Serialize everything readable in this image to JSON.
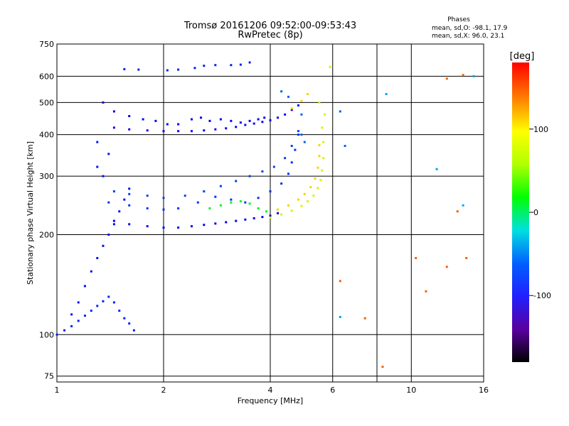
{
  "chart_data": {
    "type": "scatter",
    "title": "Tromsø 20161206 09:52:00-09:53:43",
    "subtitle": "RwPretec (8p)",
    "phase_stats": {
      "heading": "Phases",
      "line_o": "mean, sd,O: -98.1, 17.9",
      "line_x": "mean, sd,X:  96.0, 23.1"
    },
    "xlabel": "Frequency [MHz]",
    "ylabel": "Stationary phase Virtual Height [km]",
    "xscale": "log",
    "yscale": "log",
    "xlim": [
      1,
      16
    ],
    "ylim": [
      72,
      750
    ],
    "xticks": [
      1,
      2,
      4,
      6,
      10,
      16
    ],
    "xtick_labels": [
      "1",
      "2",
      "4",
      "6",
      "10",
      "16"
    ],
    "xgrid": [
      2,
      4,
      6,
      8,
      10
    ],
    "yticks": [
      75,
      100,
      200,
      300,
      400,
      500,
      600,
      750
    ],
    "ytick_labels": [
      "75",
      "100",
      "200",
      "300",
      "400",
      "500",
      "600",
      "750"
    ],
    "grid": true,
    "colorbar": {
      "label": "[deg]",
      "range": [
        -180,
        180
      ],
      "ticks": [
        100,
        0,
        -100
      ],
      "tick_labels": [
        "100",
        "0",
        "-100"
      ]
    },
    "series": [
      {
        "name": "",
        "phase": -110,
        "points": [
          [
            1.55,
            630
          ],
          [
            1.7,
            628
          ],
          [
            2.05,
            625
          ],
          [
            2.2,
            628
          ],
          [
            2.45,
            635
          ],
          [
            2.6,
            645
          ],
          [
            2.8,
            648
          ],
          [
            3.1,
            648
          ],
          [
            3.3,
            650
          ],
          [
            3.5,
            660
          ]
        ]
      },
      {
        "name": "",
        "phase": -120,
        "points": [
          [
            1.35,
            500
          ],
          [
            1.45,
            470
          ],
          [
            1.6,
            455
          ],
          [
            1.75,
            445
          ],
          [
            1.9,
            440
          ],
          [
            2.05,
            430
          ],
          [
            2.2,
            430
          ],
          [
            2.4,
            445
          ],
          [
            2.55,
            450
          ],
          [
            2.7,
            440
          ],
          [
            2.9,
            445
          ],
          [
            3.1,
            440
          ],
          [
            3.3,
            435
          ],
          [
            3.5,
            440
          ],
          [
            3.7,
            445
          ],
          [
            3.85,
            450
          ]
        ]
      },
      {
        "name": "",
        "phase": -125,
        "points": [
          [
            1.45,
            420
          ],
          [
            1.6,
            415
          ],
          [
            1.8,
            412
          ],
          [
            2.0,
            410
          ],
          [
            2.2,
            410
          ],
          [
            2.4,
            410
          ],
          [
            2.6,
            412
          ],
          [
            2.8,
            415
          ],
          [
            3.0,
            418
          ],
          [
            3.2,
            422
          ],
          [
            3.4,
            428
          ],
          [
            3.6,
            432
          ],
          [
            3.8,
            437
          ],
          [
            4.0,
            442
          ],
          [
            4.2,
            450
          ],
          [
            4.4,
            460
          ],
          [
            4.6,
            475
          ],
          [
            4.8,
            490
          ]
        ]
      },
      {
        "name": "",
        "phase": -115,
        "points": [
          [
            1.1,
            115
          ],
          [
            1.15,
            125
          ],
          [
            1.2,
            140
          ],
          [
            1.25,
            155
          ],
          [
            1.3,
            170
          ],
          [
            1.35,
            185
          ],
          [
            1.4,
            200
          ],
          [
            1.45,
            215
          ],
          [
            1.5,
            235
          ],
          [
            1.55,
            255
          ],
          [
            1.6,
            275
          ],
          [
            1.35,
            300
          ],
          [
            1.3,
            320
          ],
          [
            1.4,
            350
          ],
          [
            1.3,
            380
          ]
        ]
      },
      {
        "name": "",
        "phase": -110,
        "points": [
          [
            1.0,
            100
          ],
          [
            1.05,
            103
          ],
          [
            1.1,
            106
          ],
          [
            1.15,
            110
          ],
          [
            1.2,
            114
          ],
          [
            1.25,
            118
          ],
          [
            1.3,
            122
          ],
          [
            1.35,
            126
          ],
          [
            1.4,
            130
          ],
          [
            1.45,
            125
          ],
          [
            1.5,
            118
          ],
          [
            1.55,
            112
          ],
          [
            1.6,
            108
          ],
          [
            1.65,
            103
          ]
        ]
      },
      {
        "name": "",
        "phase": -120,
        "points": [
          [
            1.45,
            220
          ],
          [
            1.6,
            215
          ],
          [
            1.8,
            212
          ],
          [
            2.0,
            210
          ],
          [
            2.2,
            210
          ],
          [
            2.4,
            212
          ],
          [
            2.6,
            214
          ],
          [
            2.8,
            216
          ],
          [
            3.0,
            218
          ],
          [
            3.2,
            220
          ],
          [
            3.4,
            222
          ],
          [
            3.6,
            224
          ],
          [
            3.8,
            226
          ],
          [
            4.0,
            228
          ],
          [
            4.2,
            232
          ]
        ]
      },
      {
        "name": "",
        "phase": -105,
        "points": [
          [
            1.4,
            250
          ],
          [
            1.6,
            245
          ],
          [
            1.8,
            240
          ],
          [
            2.0,
            238
          ],
          [
            2.2,
            240
          ],
          [
            2.5,
            250
          ],
          [
            2.8,
            260
          ],
          [
            3.1,
            255
          ],
          [
            3.4,
            250
          ],
          [
            3.7,
            258
          ],
          [
            4.0,
            270
          ],
          [
            4.3,
            285
          ],
          [
            4.5,
            305
          ],
          [
            4.6,
            330
          ],
          [
            4.7,
            360
          ],
          [
            4.8,
            400
          ]
        ]
      },
      {
        "name": "",
        "phase": -100,
        "points": [
          [
            1.45,
            270
          ],
          [
            1.6,
            265
          ],
          [
            1.8,
            262
          ],
          [
            2.0,
            258
          ],
          [
            2.3,
            262
          ],
          [
            2.6,
            270
          ],
          [
            2.9,
            280
          ],
          [
            3.2,
            290
          ],
          [
            3.5,
            300
          ],
          [
            3.8,
            310
          ],
          [
            4.1,
            320
          ],
          [
            4.4,
            340
          ],
          [
            4.6,
            370
          ],
          [
            4.8,
            410
          ]
        ]
      },
      {
        "name": "",
        "phase": 95,
        "points": [
          [
            4.0,
            225
          ],
          [
            4.3,
            230
          ],
          [
            4.6,
            236
          ],
          [
            4.9,
            244
          ],
          [
            5.1,
            252
          ],
          [
            5.3,
            262
          ],
          [
            5.45,
            276
          ],
          [
            5.55,
            292
          ],
          [
            5.6,
            312
          ],
          [
            5.65,
            340
          ],
          [
            5.65,
            380
          ],
          [
            5.6,
            420
          ],
          [
            5.7,
            460
          ],
          [
            5.5,
            500
          ],
          [
            5.9,
            640
          ]
        ]
      },
      {
        "name": "",
        "phase": 115,
        "points": [
          [
            4.2,
            238
          ],
          [
            4.5,
            245
          ],
          [
            4.8,
            255
          ],
          [
            5.0,
            265
          ],
          [
            5.2,
            278
          ],
          [
            5.35,
            295
          ],
          [
            5.45,
            318
          ],
          [
            5.5,
            345
          ],
          [
            5.5,
            372
          ],
          [
            4.6,
            480
          ],
          [
            4.9,
            505
          ],
          [
            5.1,
            530
          ]
        ]
      },
      {
        "name": "",
        "phase": 20,
        "points": [
          [
            2.7,
            240
          ],
          [
            2.9,
            245
          ],
          [
            3.1,
            250
          ],
          [
            3.3,
            252
          ],
          [
            3.5,
            248
          ],
          [
            3.7,
            240
          ],
          [
            3.9,
            235
          ]
        ]
      },
      {
        "name": "",
        "phase": -90,
        "points": [
          [
            4.5,
            520
          ],
          [
            4.3,
            540
          ],
          [
            4.9,
            460
          ],
          [
            4.9,
            400
          ],
          [
            5.0,
            380
          ],
          [
            6.3,
            470
          ],
          [
            6.5,
            370
          ]
        ]
      },
      {
        "name": "",
        "phase": 150,
        "points": [
          [
            6.3,
            145
          ],
          [
            7.4,
            112
          ],
          [
            8.3,
            80
          ],
          [
            10.3,
            170
          ],
          [
            11.0,
            135
          ],
          [
            12.6,
            160
          ],
          [
            14.3,
            170
          ],
          [
            13.5,
            235
          ],
          [
            12.6,
            590
          ],
          [
            14.0,
            605
          ]
        ]
      },
      {
        "name": "",
        "phase": -70,
        "points": [
          [
            6.3,
            113
          ],
          [
            8.5,
            530
          ],
          [
            11.8,
            315
          ],
          [
            14.0,
            245
          ],
          [
            15.0,
            600
          ]
        ]
      }
    ]
  }
}
